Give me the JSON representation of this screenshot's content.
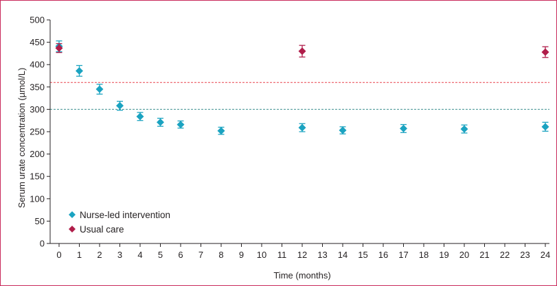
{
  "chart_data": {
    "type": "scatter",
    "title": "",
    "xlabel": "Time (months)",
    "ylabel": "Serum urate concentration (µmol/L)",
    "xlim": [
      0,
      24
    ],
    "ylim": [
      0,
      500
    ],
    "x_ticks": [
      0,
      1,
      2,
      3,
      4,
      5,
      6,
      7,
      8,
      9,
      10,
      11,
      12,
      13,
      14,
      15,
      16,
      17,
      18,
      19,
      20,
      21,
      22,
      23,
      24
    ],
    "y_ticks": [
      0,
      50,
      100,
      150,
      200,
      250,
      300,
      350,
      400,
      450,
      500
    ],
    "grid": false,
    "legend_position": "bottom-left",
    "error_bars": true,
    "reference_lines": [
      {
        "y": 360,
        "color": "#e8404a",
        "style": "dashed"
      },
      {
        "y": 300,
        "color": "#3d8f8f",
        "style": "dashed"
      }
    ],
    "series": [
      {
        "name": "Nurse-led intervention",
        "color": "#1ba3c1",
        "marker": "diamond",
        "points": [
          {
            "x": 0,
            "y": 441,
            "err": 12
          },
          {
            "x": 1,
            "y": 386,
            "err": 12
          },
          {
            "x": 2,
            "y": 345,
            "err": 11
          },
          {
            "x": 3,
            "y": 308,
            "err": 10
          },
          {
            "x": 4,
            "y": 284,
            "err": 9
          },
          {
            "x": 5,
            "y": 271,
            "err": 9
          },
          {
            "x": 6,
            "y": 266,
            "err": 8
          },
          {
            "x": 8,
            "y": 252,
            "err": 8
          },
          {
            "x": 12,
            "y": 259,
            "err": 9
          },
          {
            "x": 14,
            "y": 253,
            "err": 8
          },
          {
            "x": 17,
            "y": 257,
            "err": 9
          },
          {
            "x": 20,
            "y": 256,
            "err": 9
          },
          {
            "x": 24,
            "y": 261,
            "err": 10
          }
        ]
      },
      {
        "name": "Usual care",
        "color": "#b01d4a",
        "marker": "diamond",
        "points": [
          {
            "x": 0,
            "y": 437,
            "err": 10
          },
          {
            "x": 12,
            "y": 430,
            "err": 13
          },
          {
            "x": 24,
            "y": 428,
            "err": 12
          }
        ]
      }
    ]
  },
  "colors": {
    "frame": "#c8275a",
    "axis": "#231f20",
    "text": "#231f20"
  }
}
